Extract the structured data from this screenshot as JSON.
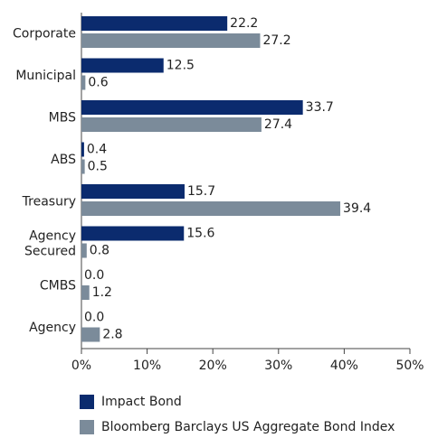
{
  "chart_data": {
    "type": "bar",
    "orientation": "horizontal",
    "categories": [
      "Corporate",
      "Municipal",
      "MBS",
      "ABS",
      "Treasury",
      "Agency\nSecured",
      "CMBS",
      "Agency"
    ],
    "series": [
      {
        "name": "Impact Bond",
        "color": "#0b2b6e",
        "values": [
          22.2,
          12.5,
          33.7,
          0.4,
          15.7,
          15.6,
          0.0,
          0.0
        ],
        "value_labels": [
          "22.2",
          "12.5",
          "33.7",
          "0.4",
          "15.7",
          "15.6",
          "0.0",
          "0.0"
        ]
      },
      {
        "name": "Bloomberg Barclays US Aggregate Bond Index",
        "color": "#7b8b9a",
        "values": [
          27.2,
          0.6,
          27.4,
          0.5,
          39.4,
          0.8,
          1.2,
          2.8
        ],
        "value_labels": [
          "27.2",
          "0.6",
          "27.4",
          "0.5",
          "39.4",
          "0.8",
          "1.2",
          "2.8"
        ]
      }
    ],
    "xlim": [
      0,
      50
    ],
    "xticks": [
      {
        "value": 0,
        "label": "0%"
      },
      {
        "value": 10,
        "label": "10%"
      },
      {
        "value": 20,
        "label": "20%"
      },
      {
        "value": 30,
        "label": "30%"
      },
      {
        "value": 40,
        "label": "40%"
      },
      {
        "value": 50,
        "label": "50%"
      }
    ],
    "grid": false,
    "legend": "bottom"
  }
}
